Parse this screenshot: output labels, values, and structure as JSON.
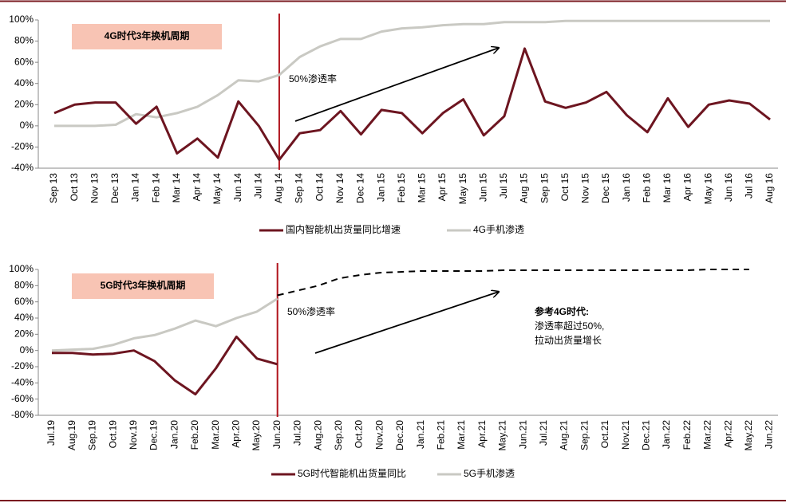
{
  "chart_data": [
    {
      "type": "line",
      "annotations": [
        {
          "text": "4G时代3年换机周期"
        },
        {
          "text": "50%渗透率"
        }
      ],
      "categories": [
        "Sep 13",
        "Oct 13",
        "Nov 13",
        "Dec 13",
        "Jan 14",
        "Feb 14",
        "Mar 14",
        "Apr 14",
        "May 14",
        "Jun 14",
        "Jul 14",
        "Aug 14",
        "Sep 14",
        "Oct 14",
        "Nov 14",
        "Dec 14",
        "Jan 15",
        "Feb 15",
        "Mar 15",
        "Apr 15",
        "May 15",
        "Jun 15",
        "Jul 15",
        "Aug 15",
        "Sep 15",
        "Oct 15",
        "Nov 15",
        "Dec 15",
        "Jan 16",
        "Feb 16",
        "Mar 16",
        "Apr 16",
        "May 16",
        "Jun 16",
        "Jul 16",
        "Aug 16"
      ],
      "series": [
        {
          "name": "国内智能机出货量同比增速",
          "color": "#6d1520",
          "values": [
            12,
            20,
            22,
            22,
            2,
            18,
            -26,
            -12,
            -30,
            23,
            0,
            -32,
            -7,
            -4,
            14,
            -8,
            15,
            12,
            -7,
            12,
            25,
            -9,
            9,
            73,
            23,
            17,
            22,
            32,
            10,
            -6,
            26,
            -1,
            20,
            24,
            21,
            6
          ]
        },
        {
          "name": "4G手机渗透",
          "color": "#c9c9c3",
          "values": [
            0,
            0,
            0,
            1,
            11,
            8,
            12,
            18,
            29,
            43,
            42,
            48,
            65,
            75,
            82,
            82,
            89,
            92,
            93,
            95,
            96,
            96,
            98,
            98,
            98,
            99,
            99,
            99,
            99,
            99,
            99,
            99,
            99,
            99,
            99,
            99
          ]
        }
      ],
      "ylim": [
        -40,
        100
      ],
      "yticks": [
        {
          "value": -40,
          "label": "-40%"
        },
        {
          "value": -20,
          "label": "-20%"
        },
        {
          "value": 0,
          "label": "0%"
        },
        {
          "value": 20,
          "label": "20%"
        },
        {
          "value": 40,
          "label": "40%"
        },
        {
          "value": 60,
          "label": "60%"
        },
        {
          "value": 80,
          "label": "80%"
        },
        {
          "value": 100,
          "label": "100%"
        }
      ],
      "grid": false
    },
    {
      "type": "line",
      "annotations": [
        {
          "text": "5G时代3年换机周期"
        },
        {
          "text": "50%渗透率"
        },
        {
          "text": "参考4G时代:"
        },
        {
          "text": "渗透率超过50%,"
        },
        {
          "text": "拉动出货量增长"
        }
      ],
      "categories": [
        "Jul.19",
        "Aug.19",
        "Sep.19",
        "Oct.19",
        "Nov.19",
        "Dec.19",
        "Jan.20",
        "Feb.20",
        "Mar.20",
        "Apr.20",
        "May.20",
        "Jun.20",
        "Jul.20",
        "Aug.20",
        "Sep.20",
        "Oct.20",
        "Nov.20",
        "Dec.20",
        "Jan.21",
        "Feb.21",
        "Mar.21",
        "Apr.21",
        "May.21",
        "Jun.21",
        "Jul.21",
        "Aug.21",
        "Sep.21",
        "Oct.21",
        "Nov.21",
        "Dec.21",
        "Jan.22",
        "Feb.22",
        "Mar.22",
        "Apr.22",
        "May.22",
        "Jun.22"
      ],
      "series": [
        {
          "name": "5G时代智能机出货量同比",
          "color": "#6d1520",
          "values": [
            -3,
            -3,
            -5,
            -4,
            0,
            -13,
            -37,
            -54,
            -22,
            17,
            -10,
            -17,
            null,
            null,
            null,
            null,
            null,
            null,
            null,
            null,
            null,
            null,
            null,
            null,
            null,
            null,
            null,
            null,
            null,
            null,
            null,
            null,
            null,
            null,
            null,
            null
          ]
        },
        {
          "name": "5G手机渗透",
          "color": "#c9c9c3",
          "values": [
            0,
            1,
            2,
            7,
            15,
            19,
            27,
            37,
            30,
            40,
            48,
            64,
            null,
            null,
            null,
            null,
            null,
            null,
            null,
            null,
            null,
            null,
            null,
            null,
            null,
            null,
            null,
            null,
            null,
            null,
            null,
            null,
            null,
            null,
            null,
            null
          ]
        },
        {
          "color": "#000000",
          "dashed": true,
          "values": [
            null,
            null,
            null,
            null,
            null,
            null,
            null,
            null,
            null,
            null,
            null,
            68,
            74,
            80,
            89,
            93,
            96,
            97,
            98,
            98,
            98,
            98,
            99,
            99,
            99,
            99,
            99,
            99,
            99,
            99,
            99,
            99,
            100,
            100,
            100,
            null
          ]
        }
      ],
      "ylim": [
        -80,
        100
      ],
      "yticks": [
        {
          "value": -80,
          "label": "-80%"
        },
        {
          "value": -60,
          "label": "-60%"
        },
        {
          "value": -40,
          "label": "-40%"
        },
        {
          "value": -20,
          "label": "-20%"
        },
        {
          "value": 0,
          "label": "0%"
        },
        {
          "value": 20,
          "label": "20%"
        },
        {
          "value": 40,
          "label": "40%"
        },
        {
          "value": 60,
          "label": "60%"
        },
        {
          "value": 80,
          "label": "80%"
        },
        {
          "value": 100,
          "label": "100%"
        }
      ],
      "grid": false
    }
  ]
}
